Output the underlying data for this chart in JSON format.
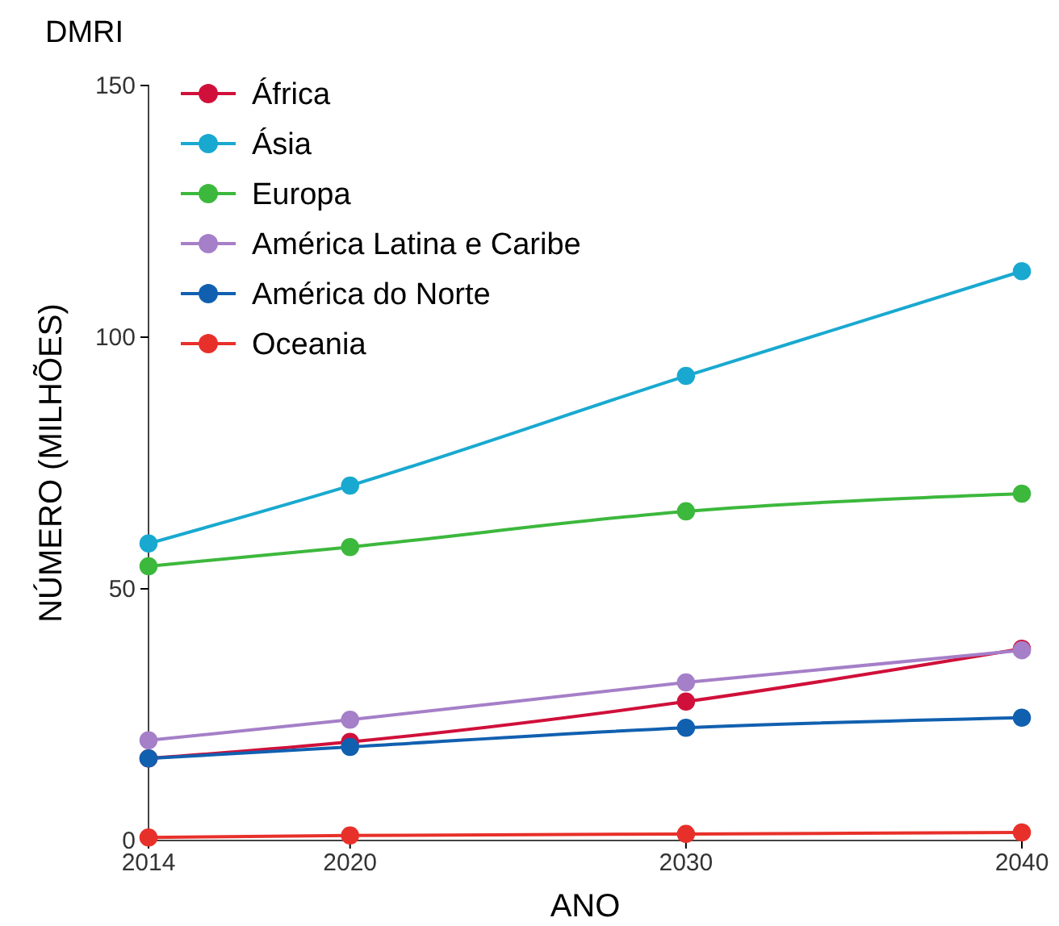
{
  "chart_data": {
    "type": "line",
    "title": "DMRI",
    "xlabel": "ANO",
    "ylabel": "NÚMERO (MILHÕES)",
    "x": [
      2014,
      2020,
      2030,
      2040
    ],
    "xlim": [
      2014,
      2040
    ],
    "xticks": [
      2014,
      2020,
      2030,
      2040
    ],
    "ylim": [
      0,
      150
    ],
    "yticks": [
      0,
      50,
      100,
      150
    ],
    "grid": false,
    "legend": "top left",
    "marker": "circle",
    "line_style": "solid",
    "series": [
      {
        "name": "África",
        "color": "#d0103a",
        "values": [
          16.3,
          19.6,
          27.6,
          38.1
        ]
      },
      {
        "name": "Ásia",
        "color": "#19a9d0",
        "values": [
          59.0,
          70.5,
          92.3,
          113.1
        ]
      },
      {
        "name": "Europa",
        "color": "#3cb83c",
        "values": [
          54.5,
          58.3,
          65.4,
          68.9
        ]
      },
      {
        "name": "América Latina e Caribe",
        "color": "#a57fc8",
        "values": [
          19.9,
          24.0,
          31.4,
          37.8
        ]
      },
      {
        "name": "América do Norte",
        "color": "#1160b0",
        "values": [
          16.3,
          18.6,
          22.4,
          24.4
        ]
      },
      {
        "name": "Oceania",
        "color": "#e8302a",
        "values": [
          0.6,
          1.0,
          1.3,
          1.6
        ]
      }
    ]
  }
}
